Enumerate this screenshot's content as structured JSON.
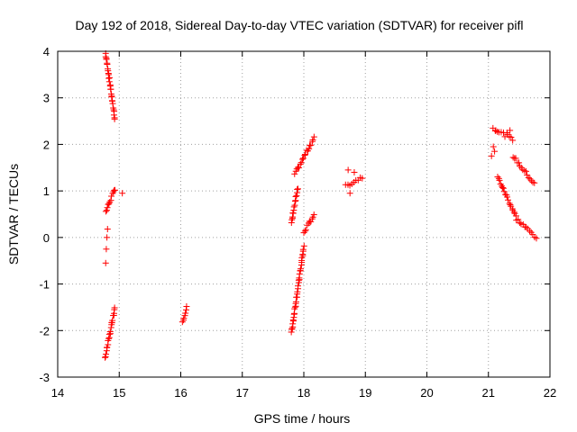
{
  "chart_data": {
    "type": "scatter",
    "title": "Day 192 of 2018, Sidereal Day-to-day VTEC variation (SDTVAR) for receiver pifl",
    "xlabel": "GPS time / hours",
    "ylabel": "SDTVAR / TECUs",
    "xlim": [
      14,
      22
    ],
    "ylim": [
      -3,
      4
    ],
    "xticks": [
      "14",
      "15",
      "16",
      "17",
      "18",
      "19",
      "20",
      "21",
      "22"
    ],
    "yticks": [
      "-3",
      "-2",
      "-1",
      "0",
      "1",
      "2",
      "3",
      "4"
    ],
    "grid": true,
    "marker": "+",
    "color": "#ff0000",
    "segments": [
      {
        "x": [
          14.78,
          14.93
        ],
        "y": [
          3.95,
          2.55
        ]
      },
      {
        "x": [
          14.78,
          14.93
        ],
        "y": [
          0.55,
          1.05
        ]
      },
      {
        "x": [
          14.78,
          14.93
        ],
        "y": [
          -2.55,
          -1.5
        ]
      },
      {
        "x": [
          16.03,
          16.1
        ],
        "y": [
          -1.8,
          -1.5
        ]
      },
      {
        "x": [
          17.8,
          17.9
        ],
        "y": [
          0.3,
          1.05
        ]
      },
      {
        "x": [
          17.85,
          18.17
        ],
        "y": [
          1.35,
          2.15
        ]
      },
      {
        "x": [
          17.8,
          18.0
        ],
        "y": [
          -2.05,
          -0.2
        ]
      },
      {
        "x": [
          18.0,
          18.17
        ],
        "y": [
          0.1,
          0.5
        ]
      },
      {
        "x": [
          18.68,
          18.95
        ],
        "y": [
          1.1,
          1.3
        ]
      },
      {
        "x": [
          21.08,
          21.4
        ],
        "y": [
          2.35,
          2.1
        ]
      },
      {
        "x": [
          21.4,
          21.75
        ],
        "y": [
          1.75,
          1.15
        ]
      },
      {
        "x": [
          21.15,
          21.45
        ],
        "y": [
          1.3,
          0.45
        ]
      },
      {
        "x": [
          21.45,
          21.78
        ],
        "y": [
          0.4,
          0.0
        ]
      }
    ],
    "points": [
      [
        14.78,
        -0.55
      ],
      [
        14.79,
        -0.25
      ],
      [
        14.8,
        0.0
      ],
      [
        14.81,
        0.18
      ],
      [
        14.77,
        -2.58
      ],
      [
        15.05,
        0.95
      ],
      [
        21.05,
        1.75
      ],
      [
        21.08,
        1.95
      ],
      [
        21.1,
        1.85
      ],
      [
        21.12,
        2.3
      ],
      [
        18.82,
        1.4
      ],
      [
        18.75,
        0.95
      ],
      [
        18.72,
        1.45
      ],
      [
        21.3,
        2.25
      ],
      [
        21.35,
        2.3
      ]
    ]
  }
}
